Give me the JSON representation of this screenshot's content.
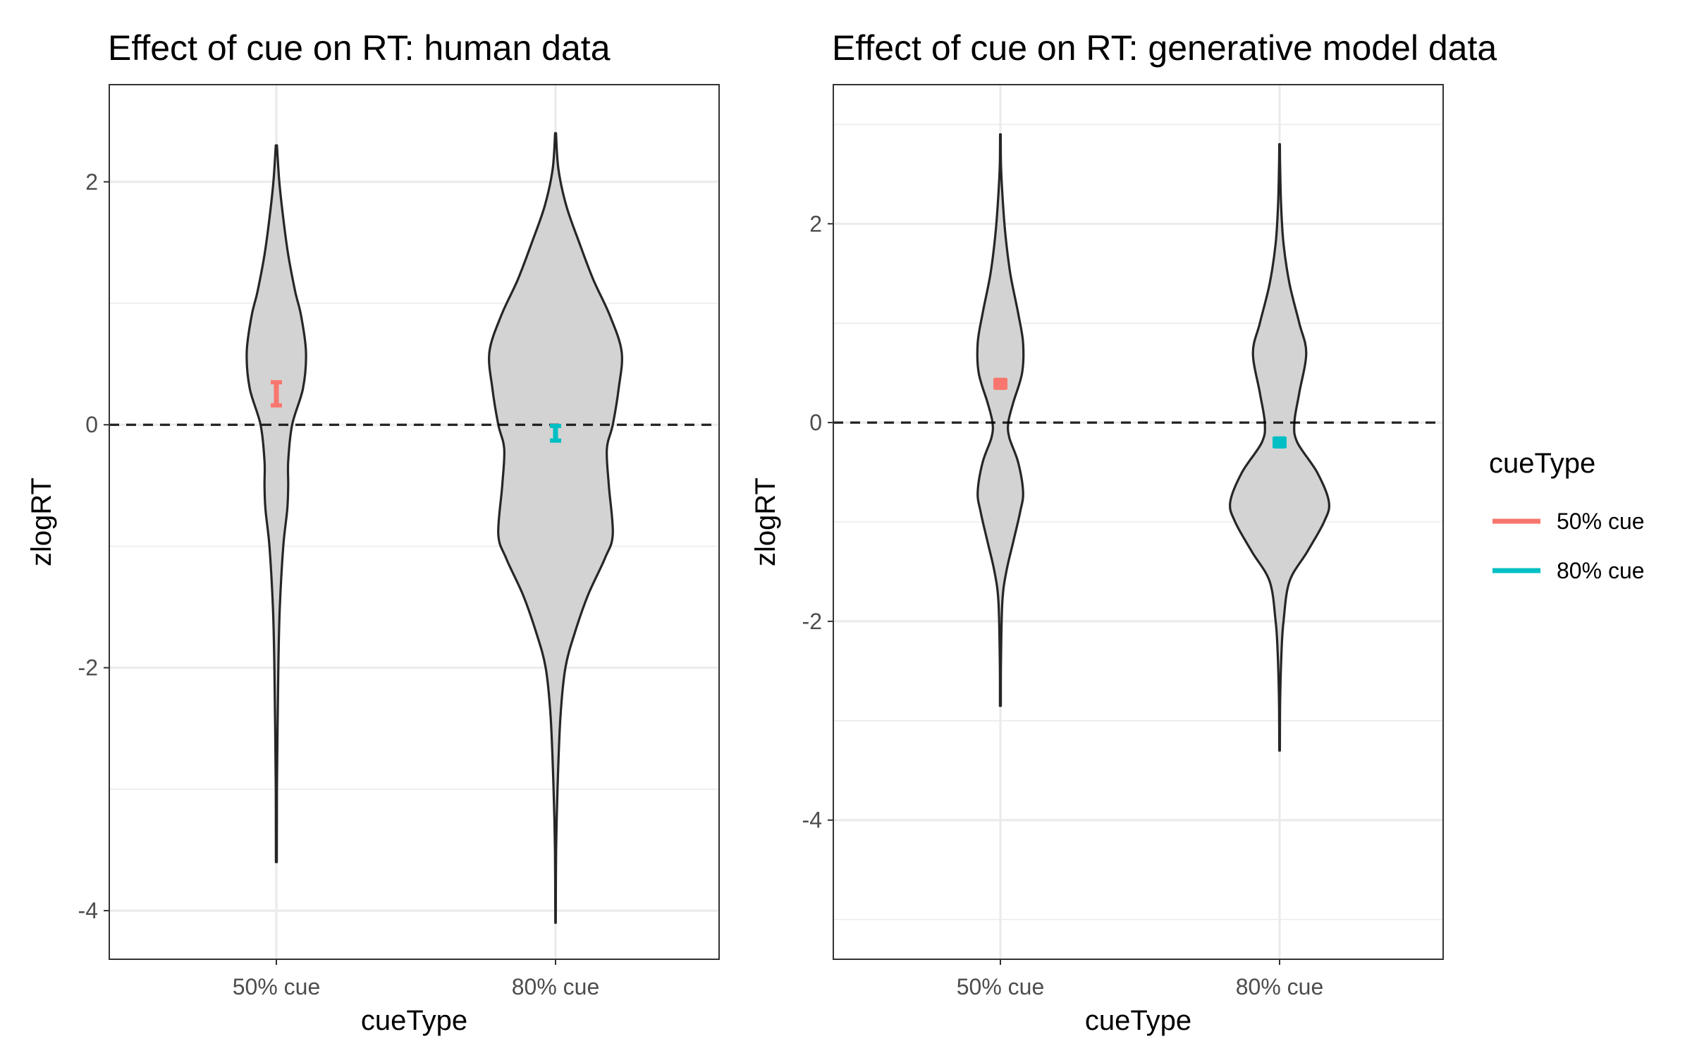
{
  "chart_data": [
    {
      "type": "violin",
      "title": "Effect of cue on RT: human data",
      "xlabel": "cueType",
      "ylabel": "zlogRT",
      "categories": [
        "50% cue",
        "80% cue"
      ],
      "ylim": [
        -4.4,
        2.8
      ],
      "yticks": [
        -4,
        -2,
        0,
        2
      ],
      "ytick_labels": [
        "-4",
        "-2",
        "0",
        "2"
      ],
      "grid": true,
      "hline": 0,
      "violins": [
        {
          "category": "50% cue",
          "profile": [
            [
              -3.6,
              0.004
            ],
            [
              -3.0,
              0.006
            ],
            [
              -2.0,
              0.02
            ],
            [
              -1.5,
              0.035
            ],
            [
              -1.0,
              0.07
            ],
            [
              -0.7,
              0.11
            ],
            [
              -0.5,
              0.12
            ],
            [
              -0.3,
              0.12
            ],
            [
              0.0,
              0.16
            ],
            [
              0.3,
              0.27
            ],
            [
              0.6,
              0.3
            ],
            [
              0.9,
              0.25
            ],
            [
              1.1,
              0.19
            ],
            [
              1.4,
              0.12
            ],
            [
              1.7,
              0.07
            ],
            [
              2.0,
              0.03
            ],
            [
              2.3,
              0.006
            ]
          ]
        },
        {
          "category": "80% cue",
          "profile": [
            [
              -4.1,
              0.002
            ],
            [
              -3.5,
              0.006
            ],
            [
              -3.0,
              0.02
            ],
            [
              -2.4,
              0.05
            ],
            [
              -2.0,
              0.1
            ],
            [
              -1.7,
              0.2
            ],
            [
              -1.4,
              0.33
            ],
            [
              -1.1,
              0.5
            ],
            [
              -0.9,
              0.58
            ],
            [
              -0.5,
              0.54
            ],
            [
              -0.2,
              0.52
            ],
            [
              0.0,
              0.58
            ],
            [
              0.3,
              0.64
            ],
            [
              0.6,
              0.67
            ],
            [
              0.9,
              0.55
            ],
            [
              1.2,
              0.38
            ],
            [
              1.5,
              0.24
            ],
            [
              1.8,
              0.11
            ],
            [
              2.1,
              0.03
            ],
            [
              2.4,
              0.004
            ]
          ]
        }
      ],
      "points": [
        {
          "category": "50% cue",
          "mean": 0.26,
          "ymin": 0.16,
          "ymax": 0.35,
          "color": "#F8766D"
        },
        {
          "category": "80% cue",
          "mean": -0.07,
          "ymin": -0.13,
          "ymax": -0.01,
          "color": "#00BFC4"
        }
      ]
    },
    {
      "type": "violin",
      "title": "Effect of cue on RT: generative model data",
      "xlabel": "cueType",
      "ylabel": "zlogRT",
      "categories": [
        "50% cue",
        "80% cue"
      ],
      "ylim": [
        -5.4,
        3.4
      ],
      "yticks": [
        -4,
        -2,
        0,
        2
      ],
      "ytick_labels": [
        "-4",
        "-2",
        "0",
        "2"
      ],
      "grid": true,
      "hline": 0,
      "violins": [
        {
          "category": "50% cue",
          "profile": [
            [
              -2.85,
              0.004
            ],
            [
              -2.4,
              0.006
            ],
            [
              -1.8,
              0.02
            ],
            [
              -1.5,
              0.06
            ],
            [
              -1.2,
              0.13
            ],
            [
              -0.9,
              0.2
            ],
            [
              -0.7,
              0.23
            ],
            [
              -0.4,
              0.18
            ],
            [
              -0.15,
              0.09
            ],
            [
              0.0,
              0.08
            ],
            [
              0.2,
              0.13
            ],
            [
              0.5,
              0.22
            ],
            [
              0.8,
              0.23
            ],
            [
              1.1,
              0.18
            ],
            [
              1.5,
              0.1
            ],
            [
              1.9,
              0.05
            ],
            [
              2.3,
              0.02
            ],
            [
              2.6,
              0.006
            ],
            [
              2.9,
              0.003
            ]
          ]
        },
        {
          "category": "80% cue",
          "profile": [
            [
              -3.3,
              0.003
            ],
            [
              -2.8,
              0.006
            ],
            [
              -2.3,
              0.02
            ],
            [
              -2.0,
              0.04
            ],
            [
              -1.6,
              0.1
            ],
            [
              -1.3,
              0.28
            ],
            [
              -1.0,
              0.45
            ],
            [
              -0.8,
              0.5
            ],
            [
              -0.5,
              0.38
            ],
            [
              -0.2,
              0.18
            ],
            [
              0.0,
              0.15
            ],
            [
              0.3,
              0.2
            ],
            [
              0.7,
              0.27
            ],
            [
              1.0,
              0.2
            ],
            [
              1.4,
              0.1
            ],
            [
              1.8,
              0.04
            ],
            [
              2.2,
              0.015
            ],
            [
              2.6,
              0.005
            ],
            [
              2.8,
              0.003
            ]
          ]
        }
      ],
      "points": [
        {
          "category": "50% cue",
          "mean": 0.39,
          "ymin": 0.35,
          "ymax": 0.43,
          "color": "#F8766D"
        },
        {
          "category": "80% cue",
          "mean": -0.2,
          "ymin": -0.24,
          "ymax": -0.16,
          "color": "#00BFC4"
        }
      ]
    }
  ],
  "legend": {
    "title": "cueType",
    "placement": "right",
    "items": [
      {
        "label": "50% cue",
        "color": "#F8766D"
      },
      {
        "label": "80% cue",
        "color": "#00BFC4"
      }
    ]
  }
}
